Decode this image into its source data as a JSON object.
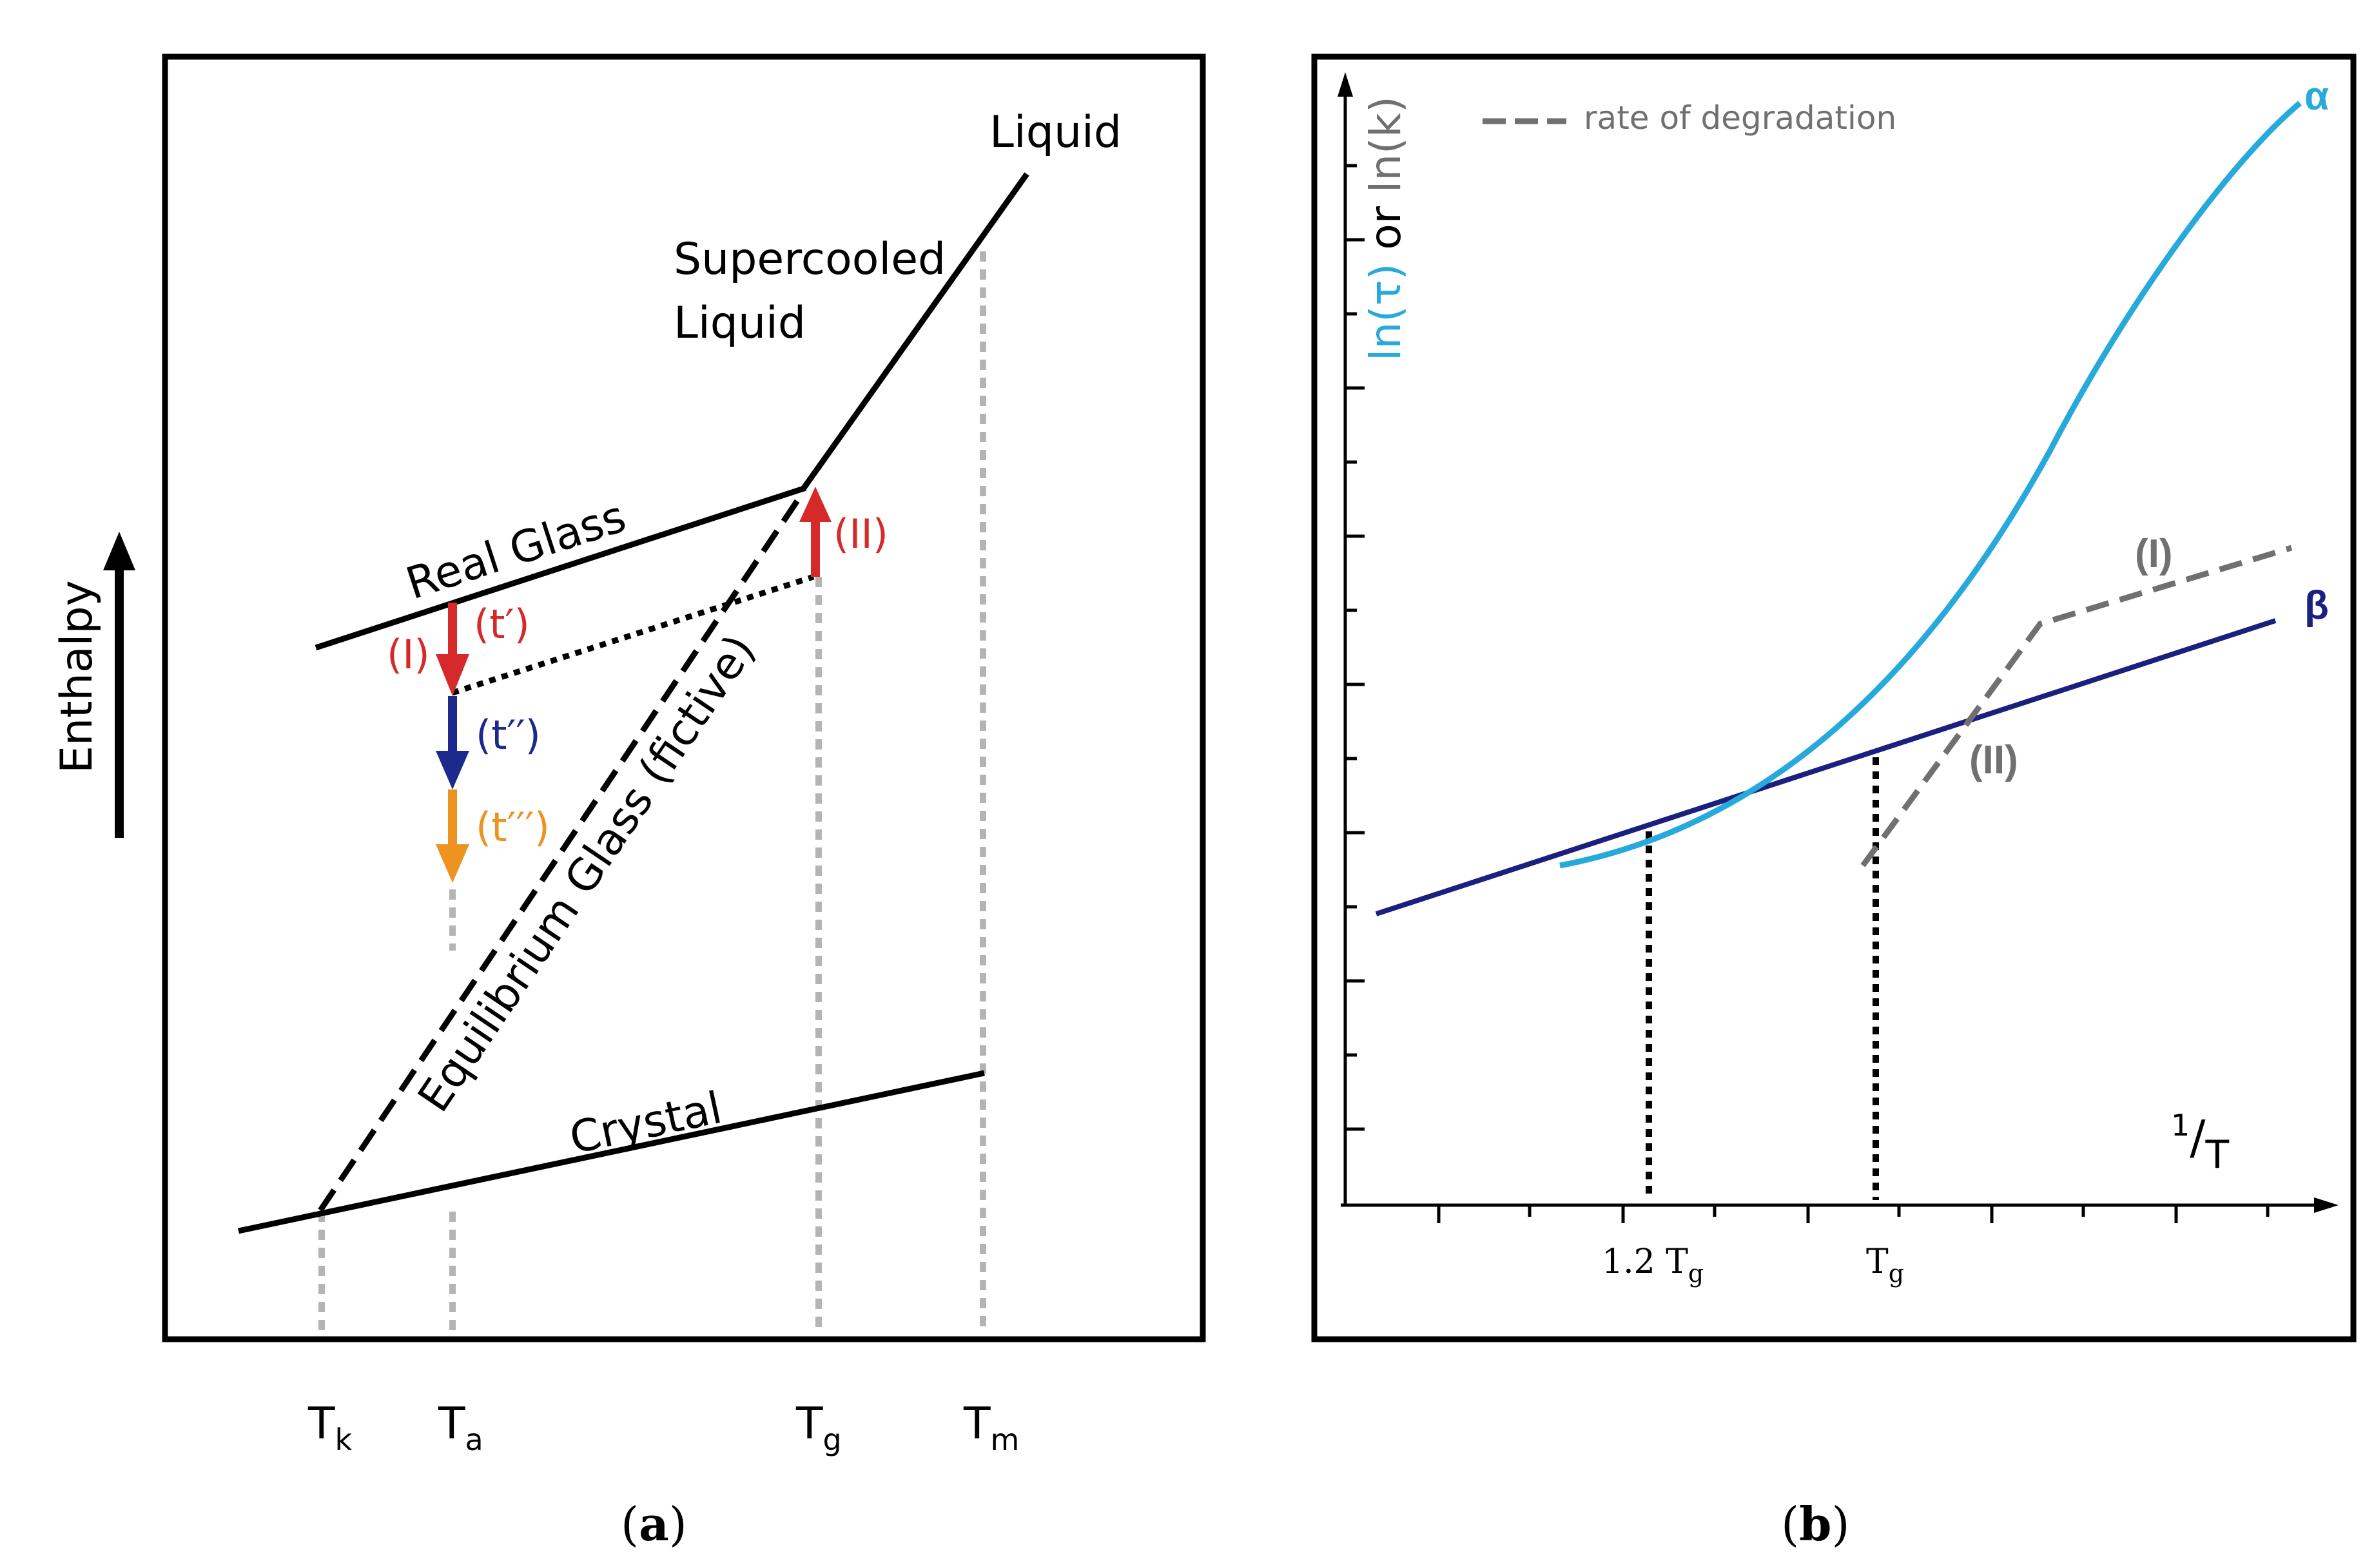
{
  "panel_a": {
    "caption": {
      "open": "(",
      "letter": "a",
      "close": ")"
    },
    "ylabel": "Enthalpy",
    "labels": {
      "liquid": "Liquid",
      "supercooled_1": "Supercooled",
      "supercooled_2": "Liquid",
      "real_glass": "Real Glass",
      "equilibrium_glass": "Equilibrium Glass (fictive)",
      "crystal": "Crystal"
    },
    "arrows": {
      "I": "(I)",
      "II": "(II)",
      "t1": "(t′)",
      "t2": "(t′′)",
      "t3": "(t′′′)"
    },
    "ticks": [
      {
        "main": "T",
        "sub": "k"
      },
      {
        "main": "T",
        "sub": "a"
      },
      {
        "main": "T",
        "sub": "g"
      },
      {
        "main": "T",
        "sub": "m"
      }
    ]
  },
  "panel_b": {
    "caption": {
      "open": "(",
      "letter": "b",
      "close": ")"
    },
    "ylabel": {
      "part1": "ln(τ)",
      "part2": " or ",
      "part3": "ln(k)"
    },
    "xlabel": {
      "num": "1",
      "slash": "/",
      "den": "T"
    },
    "legend": "rate of degradation",
    "series_labels": {
      "alpha": "α",
      "beta": "β",
      "I": "(I)",
      "II": "(II)"
    },
    "ticks": [
      {
        "main": "1.2 T",
        "sub": "g"
      },
      {
        "main": "T",
        "sub": "g"
      }
    ]
  },
  "colors": {
    "black": "#000000",
    "red": "#d62a2a",
    "blue": "#1c2a8c",
    "orange": "#ec9320",
    "gray_dotted": "#b4b4b4",
    "alpha": "#27a9dc",
    "beta": "#1b1f7e",
    "degradation": "#707070"
  }
}
